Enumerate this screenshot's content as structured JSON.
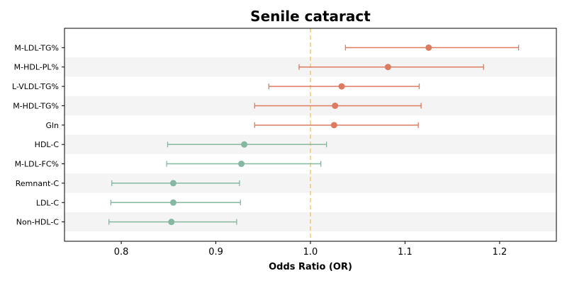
{
  "chart_data": {
    "type": "forest",
    "title": "Senile cataract",
    "xlabel": "Odds Ratio (OR)",
    "ylabel": "",
    "xlim": [
      0.74,
      1.26
    ],
    "xticks": [
      "0.8",
      "0.9",
      "1.0",
      "1.1",
      "1.2"
    ],
    "reference_line": 1.0,
    "grid": false,
    "row_shading": "alternating light gray",
    "colors": {
      "risk": "#dd7b61",
      "protective": "#86b7a0",
      "reference": "#f0c87a",
      "band": "#f4f4f4"
    },
    "rows": [
      {
        "label": "M-LDL-TG%",
        "or": 1.125,
        "lower": 1.037,
        "upper": 1.22,
        "group": "risk"
      },
      {
        "label": "M-HDL-PL%",
        "or": 1.082,
        "lower": 0.988,
        "upper": 1.183,
        "group": "risk"
      },
      {
        "label": "L-VLDL-TG%",
        "or": 1.033,
        "lower": 0.956,
        "upper": 1.115,
        "group": "risk"
      },
      {
        "label": "M-HDL-TG%",
        "or": 1.026,
        "lower": 0.941,
        "upper": 1.117,
        "group": "risk"
      },
      {
        "label": "Gln",
        "or": 1.025,
        "lower": 0.941,
        "upper": 1.114,
        "group": "risk"
      },
      {
        "label": "HDL-C",
        "or": 0.93,
        "lower": 0.849,
        "upper": 1.017,
        "group": "protective"
      },
      {
        "label": "M-LDL-FC%",
        "or": 0.927,
        "lower": 0.848,
        "upper": 1.011,
        "group": "protective"
      },
      {
        "label": "Remnant-C",
        "or": 0.855,
        "lower": 0.79,
        "upper": 0.925,
        "group": "protective"
      },
      {
        "label": "LDL-C",
        "or": 0.855,
        "lower": 0.789,
        "upper": 0.926,
        "group": "protective"
      },
      {
        "label": "Non-HDL-C",
        "or": 0.853,
        "lower": 0.787,
        "upper": 0.922,
        "group": "protective"
      }
    ]
  }
}
